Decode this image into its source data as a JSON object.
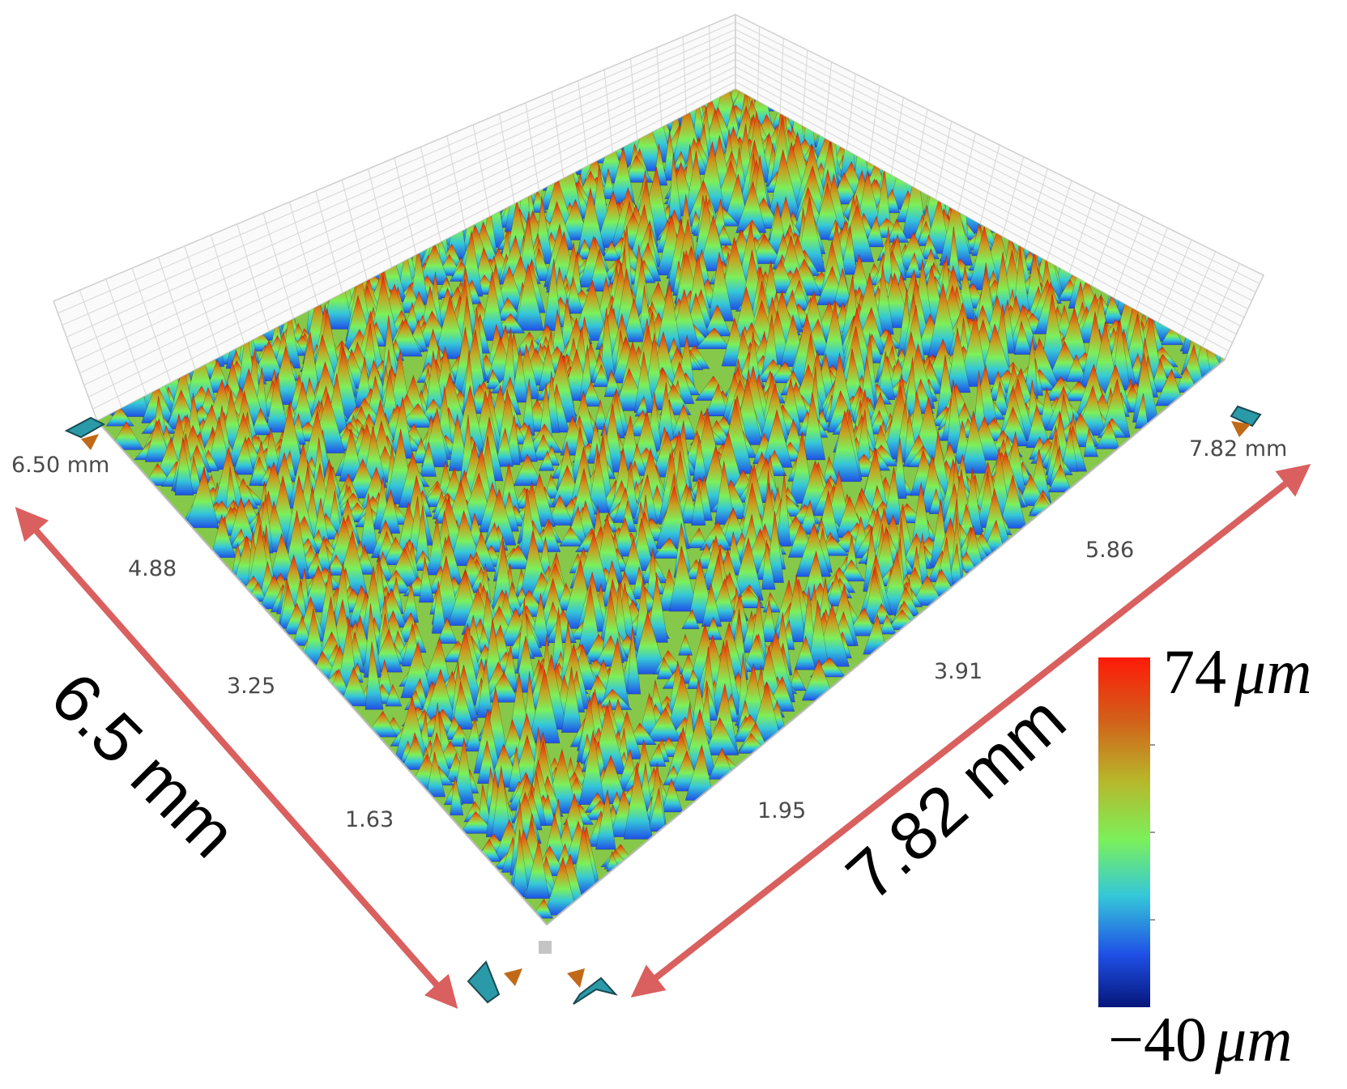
{
  "chart_data": {
    "type": "surface3d",
    "title": "",
    "x_axis": {
      "length": 7.82,
      "unit": "mm",
      "ticks": [
        "1.95",
        "3.91",
        "5.86",
        "7.82 mm"
      ],
      "tick_values": [
        1.95,
        3.91,
        5.86,
        7.82
      ],
      "dimension_label": "7.82 mm"
    },
    "y_axis": {
      "length": 6.5,
      "unit": "mm",
      "ticks": [
        "1.63",
        "3.25",
        "4.88",
        "6.50 mm"
      ],
      "tick_values": [
        1.63,
        3.25,
        4.88,
        6.5
      ],
      "dimension_label": "6.5 mm"
    },
    "z_range": {
      "min": -40,
      "max": 74,
      "unit": "µm",
      "max_value": "74",
      "min_value": "−40",
      "unit_label": "μm"
    },
    "colormap": [
      "#06167a",
      "#1f4fe6",
      "#35c8d8",
      "#7cf05a",
      "#b8b62a",
      "#d2601a",
      "#ff1a08"
    ]
  }
}
